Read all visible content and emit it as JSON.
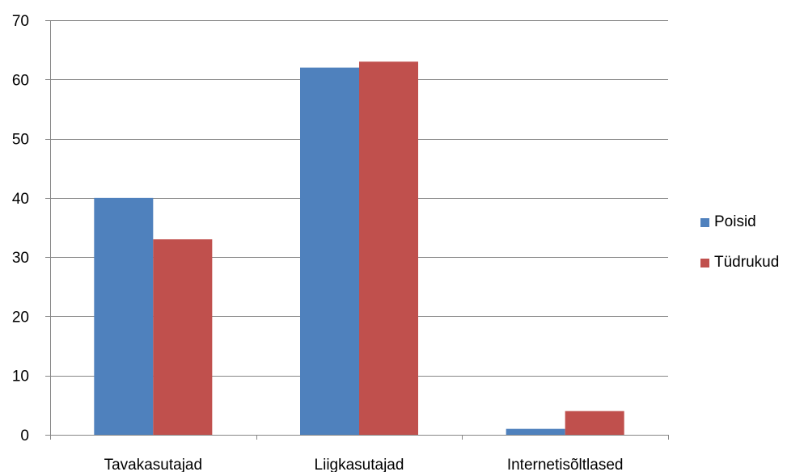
{
  "chart_data": {
    "type": "bar",
    "categories": [
      "Tavakasutajad",
      "Liigkasutajad",
      "Internetisõltlased"
    ],
    "series": [
      {
        "name": "Poisid",
        "values": [
          40,
          62,
          1
        ],
        "color": "#4f81bd"
      },
      {
        "name": "Tüdrukud",
        "values": [
          33,
          63,
          4
        ],
        "color": "#c0504d"
      }
    ],
    "ylim": [
      0,
      70
    ],
    "yticks": [
      0,
      10,
      20,
      30,
      40,
      50,
      60,
      70
    ],
    "grid": true,
    "legend_position": "right"
  },
  "legend": {
    "items": [
      {
        "label": "Poisid",
        "color": "#4f81bd"
      },
      {
        "label": "Tüdrukud",
        "color": "#c0504d"
      }
    ]
  }
}
